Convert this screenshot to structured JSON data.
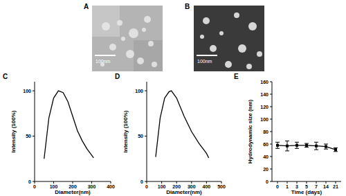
{
  "panels": [
    {
      "label": "A",
      "scale_bar": "100nm"
    },
    {
      "label": "B",
      "scale_bar": "100nm"
    }
  ],
  "chart_data": [
    {
      "type": "line",
      "title": "C",
      "x_label": "Diameter(nm)",
      "y_label": "Intensity (100%)",
      "x": [
        50,
        75,
        100,
        125,
        150,
        175,
        200,
        225,
        250,
        275,
        300,
        310
      ],
      "values": [
        25,
        70,
        92,
        100,
        98,
        88,
        72,
        56,
        45,
        36,
        29,
        26
      ],
      "color": "#000000",
      "xlim": [
        0,
        400
      ],
      "xticks": [
        0,
        100,
        200,
        300,
        400
      ],
      "ylim": [
        0,
        110
      ],
      "yticks": [
        0,
        50,
        100
      ],
      "grid": false
    },
    {
      "type": "line",
      "title": "D",
      "x_label": "Diameter(nm)",
      "y_label": "Intensity (100%)",
      "x": [
        60,
        90,
        120,
        150,
        165,
        200,
        250,
        300,
        350,
        400,
        415
      ],
      "values": [
        27,
        70,
        92,
        99,
        100,
        92,
        72,
        55,
        42,
        31,
        26
      ],
      "color": "#000000",
      "xlim": [
        0,
        500
      ],
      "xticks": [
        0,
        100,
        200,
        300,
        400,
        500
      ],
      "ylim": [
        0,
        110
      ],
      "yticks": [
        0,
        50,
        100
      ],
      "grid": false
    },
    {
      "type": "line",
      "title": "E",
      "x_label": "Time (days)",
      "y_label": "Hydrodynamic size (nm)",
      "categories": [
        "0",
        "1",
        "3",
        "5",
        "7",
        "14",
        "21"
      ],
      "values": [
        58,
        57,
        58,
        58,
        57,
        56,
        51
      ],
      "errors": [
        5,
        8,
        5,
        3,
        6,
        4,
        3
      ],
      "color": "#000000",
      "marker": "square",
      "ylim": [
        0,
        160
      ],
      "yticks": [
        0,
        20,
        40,
        60,
        80,
        100,
        120,
        140,
        160
      ],
      "grid": false
    }
  ]
}
